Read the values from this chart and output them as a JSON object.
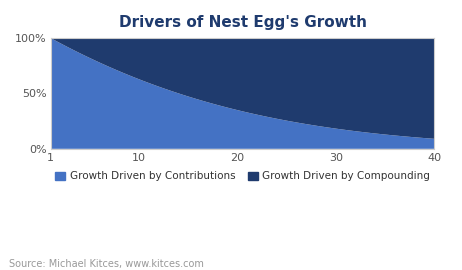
{
  "title": "Drivers of Nest Egg's Growth",
  "color_contributions": "#4472C4",
  "color_compounding": "#1F3B6E",
  "background_color": "#ffffff",
  "plot_bg_color": "#ffffff",
  "x_min": 1,
  "x_max": 40,
  "xticks": [
    1,
    10,
    20,
    30,
    40
  ],
  "ytick_labels": [
    "0%",
    "50%",
    "100%"
  ],
  "ytick_vals": [
    0.0,
    0.5,
    1.0
  ],
  "annual_return": 0.1,
  "legend_label_contributions": "Growth Driven by Contributions",
  "legend_label_compounding": "Growth Driven by Compounding",
  "source_text": "Source: Michael Kitces, www.kitces.com",
  "title_color": "#1F3B6E",
  "title_fontsize": 11,
  "source_fontsize": 7,
  "tick_fontsize": 8,
  "legend_fontsize": 7.5
}
